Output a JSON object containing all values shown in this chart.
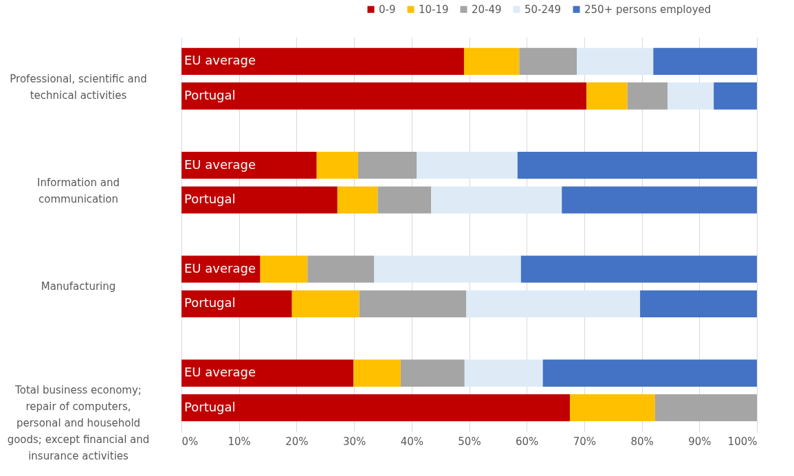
{
  "chart_data": {
    "type": "bar",
    "orientation": "horizontal",
    "stacked": true,
    "categories": [
      "EU average",
      "Portugal",
      "EU average",
      "Portugal",
      "EU average",
      "Portugal",
      "EU average",
      "Portugal"
    ],
    "series": [
      {
        "name": "0-9",
        "color": "#c00000",
        "values": [
          49.1,
          70.4,
          23.5,
          27.1,
          13.7,
          19.2,
          29.9,
          67.5
        ]
      },
      {
        "name": "10-19",
        "color": "#ffc000",
        "values": [
          9.6,
          7.1,
          7.2,
          7.0,
          8.2,
          11.7,
          8.2,
          14.8
        ]
      },
      {
        "name": "20-49",
        "color": "#a5a5a5",
        "values": [
          10.0,
          7.0,
          10.2,
          9.3,
          11.6,
          18.6,
          11.1,
          17.7
        ]
      },
      {
        "name": "50-249",
        "color": "#deebf7",
        "values": [
          13.3,
          8.0,
          17.5,
          22.7,
          25.5,
          30.2,
          13.6,
          null
        ]
      },
      {
        "name": "250+ persons employed",
        "color": "#4472c4",
        "values": [
          18.0,
          7.5,
          41.6,
          33.9,
          41.0,
          20.3,
          37.2,
          null
        ]
      }
    ],
    "annotations": [
      "Professional, scientific and technical activities",
      "Information and communication",
      "Manufacturing",
      "Total business economy; repair of computers, personal and household goods; except financial and insurance activities"
    ],
    "xlim": [
      0,
      100
    ],
    "xticks": [
      {
        "value": 0,
        "label": "0%"
      },
      {
        "value": 10,
        "label": "10%"
      },
      {
        "value": 20,
        "label": "20%"
      },
      {
        "value": 30,
        "label": "30%"
      },
      {
        "value": 40,
        "label": "40%"
      },
      {
        "value": 50,
        "label": "50%"
      },
      {
        "value": 60,
        "label": "60%"
      },
      {
        "value": 70,
        "label": "70%"
      },
      {
        "value": 80,
        "label": "80%"
      },
      {
        "value": 90,
        "label": "90%"
      },
      {
        "value": 100,
        "label": "100%"
      }
    ],
    "grid": "x",
    "legend": "top right"
  }
}
